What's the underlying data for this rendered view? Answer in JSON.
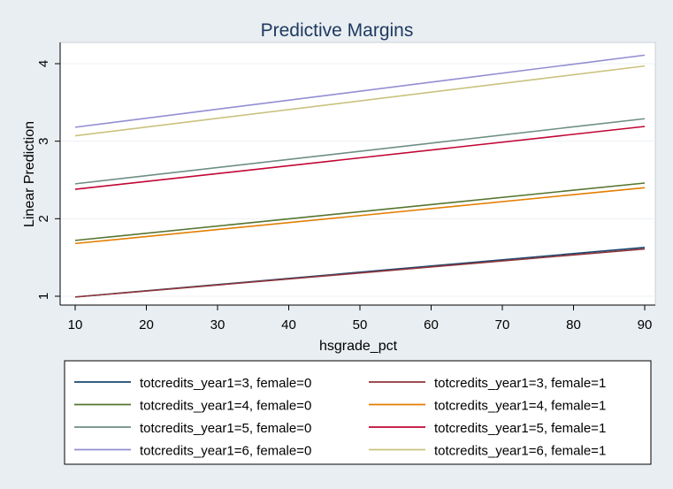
{
  "chart_data": {
    "type": "line",
    "title": "Predictive Margins",
    "xlabel": "hsgrade_pct",
    "ylabel": "Linear Prediction",
    "xlim": [
      10,
      90
    ],
    "ylim": [
      1,
      4
    ],
    "xticks": [
      10,
      20,
      30,
      40,
      50,
      60,
      70,
      80,
      90
    ],
    "yticks": [
      1,
      2,
      3,
      4
    ],
    "grid": "horizontal",
    "legend_position": "bottom",
    "x": [
      10,
      90
    ],
    "series": [
      {
        "name": "totcredits_year1=3, female=0",
        "color": "#1a476f",
        "values": [
          0.99,
          1.63
        ]
      },
      {
        "name": "totcredits_year1=3, female=1",
        "color": "#90353b",
        "values": [
          0.99,
          1.61
        ]
      },
      {
        "name": "totcredits_year1=4, female=0",
        "color": "#55752f",
        "values": [
          1.72,
          2.46
        ]
      },
      {
        "name": "totcredits_year1=4, female=1",
        "color": "#e37e00",
        "values": [
          1.68,
          2.4
        ]
      },
      {
        "name": "totcredits_year1=5, female=0",
        "color": "#6e8e84",
        "values": [
          2.45,
          3.29
        ]
      },
      {
        "name": "totcredits_year1=5, female=1",
        "color": "#c10534",
        "values": [
          2.38,
          3.19
        ]
      },
      {
        "name": "totcredits_year1=6, female=0",
        "color": "#938dd2",
        "values": [
          3.18,
          4.11
        ]
      },
      {
        "name": "totcredits_year1=6, female=1",
        "color": "#cac27e",
        "values": [
          3.07,
          3.97
        ]
      }
    ]
  }
}
